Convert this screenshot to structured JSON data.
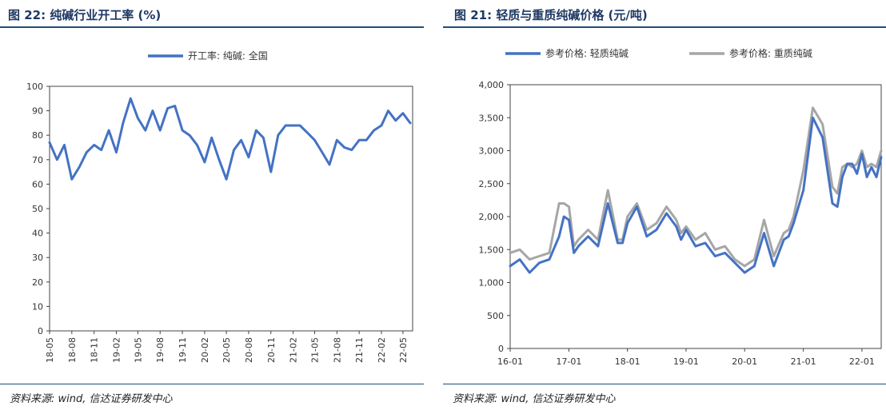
{
  "left_panel": {
    "title": "图 22: 纯碱行业开工率 (%)",
    "source": "资料来源: wind, 信达证券研发中心"
  },
  "right_panel": {
    "title": "图 21: 轻质与重质纯碱价格 (元/吨)",
    "source": "资料来源: wind, 信达证券研发中心"
  },
  "chart_data": [
    {
      "type": "line",
      "title": "",
      "xlabel": "",
      "ylabel": "",
      "ylim": [
        0,
        100
      ],
      "y_ticks": [
        "0",
        "10",
        "20",
        "30",
        "40",
        "50",
        "60",
        "70",
        "80",
        "90",
        "100"
      ],
      "x_ticks": [
        "18-05",
        "18-08",
        "18-11",
        "19-02",
        "19-05",
        "19-08",
        "19-11",
        "20-02",
        "20-05",
        "20-08",
        "20-11",
        "21-02",
        "21-05",
        "21-08",
        "21-11",
        "22-02",
        "22-05"
      ],
      "legend_position": "top-center",
      "grid": false,
      "series": [
        {
          "name": "开工率: 纯碱: 全国",
          "color": "#4472c4",
          "x": [
            "2018-05-01",
            "2018-06-01",
            "2018-07-01",
            "2018-08-01",
            "2018-09-01",
            "2018-10-01",
            "2018-11-01",
            "2018-12-01",
            "2019-01-01",
            "2019-02-01",
            "2019-03-01",
            "2019-04-01",
            "2019-05-01",
            "2019-06-01",
            "2019-07-01",
            "2019-08-01",
            "2019-09-01",
            "2019-10-01",
            "2019-11-01",
            "2019-12-01",
            "2020-01-01",
            "2020-02-01",
            "2020-03-01",
            "2020-04-01",
            "2020-05-01",
            "2020-06-01",
            "2020-07-01",
            "2020-08-01",
            "2020-09-01",
            "2020-10-01",
            "2020-11-01",
            "2020-12-01",
            "2021-01-01",
            "2021-02-01",
            "2021-03-01",
            "2021-04-01",
            "2021-05-01",
            "2021-06-01",
            "2021-07-01",
            "2021-08-01",
            "2021-09-01",
            "2021-10-01",
            "2021-11-01",
            "2021-12-01",
            "2022-01-01",
            "2022-02-01",
            "2022-03-01",
            "2022-04-01",
            "2022-05-01",
            "2022-05-31"
          ],
          "values": [
            77,
            70,
            76,
            62,
            67,
            73,
            76,
            74,
            82,
            73,
            85,
            95,
            87,
            82,
            90,
            82,
            91,
            92,
            82,
            80,
            76,
            69,
            79,
            70,
            62,
            74,
            78,
            71,
            82,
            79,
            65,
            80,
            84,
            84,
            84,
            81,
            78,
            73,
            68,
            78,
            75,
            74,
            78,
            78,
            82,
            84,
            90,
            86,
            89,
            85
          ]
        }
      ]
    },
    {
      "type": "line",
      "title": "",
      "xlabel": "",
      "ylabel": "",
      "ylim": [
        0,
        4000
      ],
      "y_ticks": [
        "0",
        "500",
        "1,000",
        "1,500",
        "2,000",
        "2,500",
        "3,000",
        "3,500",
        "4,000"
      ],
      "x_ticks": [
        "16-01",
        "17-01",
        "18-01",
        "19-01",
        "20-01",
        "21-01",
        "22-01"
      ],
      "legend_position": "top-center",
      "grid": false,
      "series": [
        {
          "name": "参考价格: 轻质纯碱",
          "color": "#4472c4",
          "x": [
            "2016-01-01",
            "2016-03-01",
            "2016-05-01",
            "2016-07-01",
            "2016-09-01",
            "2016-11-01",
            "2016-12-01",
            "2017-01-01",
            "2017-02-01",
            "2017-03-01",
            "2017-05-01",
            "2017-07-01",
            "2017-09-01",
            "2017-11-01",
            "2017-12-01",
            "2018-01-01",
            "2018-03-01",
            "2018-05-01",
            "2018-07-01",
            "2018-09-01",
            "2018-11-01",
            "2018-12-01",
            "2019-01-01",
            "2019-03-01",
            "2019-05-01",
            "2019-07-01",
            "2019-09-01",
            "2019-11-01",
            "2020-01-01",
            "2020-03-01",
            "2020-05-01",
            "2020-07-01",
            "2020-09-01",
            "2020-10-01",
            "2020-11-01",
            "2021-01-01",
            "2021-03-01",
            "2021-05-01",
            "2021-07-01",
            "2021-08-01",
            "2021-09-01",
            "2021-10-01",
            "2021-11-01",
            "2021-12-01",
            "2022-01-01",
            "2022-02-01",
            "2022-03-01",
            "2022-04-01",
            "2022-05-01"
          ],
          "values": [
            1250,
            1350,
            1150,
            1300,
            1350,
            1700,
            2000,
            1950,
            1450,
            1550,
            1700,
            1550,
            2200,
            1600,
            1600,
            1900,
            2150,
            1700,
            1800,
            2050,
            1850,
            1650,
            1800,
            1550,
            1600,
            1400,
            1450,
            1300,
            1150,
            1250,
            1750,
            1250,
            1650,
            1700,
            1900,
            2400,
            3500,
            3200,
            2200,
            2150,
            2600,
            2800,
            2800,
            2650,
            2950,
            2600,
            2750,
            2600,
            2900
          ]
        },
        {
          "name": "参考价格: 重质纯碱",
          "color": "#a6a6a6",
          "x": [
            "2016-01-01",
            "2016-03-01",
            "2016-05-01",
            "2016-07-01",
            "2016-09-01",
            "2016-11-01",
            "2016-12-01",
            "2017-01-01",
            "2017-02-01",
            "2017-03-01",
            "2017-05-01",
            "2017-07-01",
            "2017-09-01",
            "2017-11-01",
            "2017-12-01",
            "2018-01-01",
            "2018-03-01",
            "2018-05-01",
            "2018-07-01",
            "2018-09-01",
            "2018-11-01",
            "2018-12-01",
            "2019-01-01",
            "2019-03-01",
            "2019-05-01",
            "2019-07-01",
            "2019-09-01",
            "2019-11-01",
            "2020-01-01",
            "2020-03-01",
            "2020-05-01",
            "2020-07-01",
            "2020-09-01",
            "2020-10-01",
            "2020-11-01",
            "2021-01-01",
            "2021-03-01",
            "2021-05-01",
            "2021-07-01",
            "2021-08-01",
            "2021-09-01",
            "2021-10-01",
            "2021-11-01",
            "2021-12-01",
            "2022-01-01",
            "2022-02-01",
            "2022-03-01",
            "2022-04-01",
            "2022-05-01"
          ],
          "values": [
            1450,
            1500,
            1350,
            1400,
            1450,
            2200,
            2200,
            2150,
            1550,
            1650,
            1800,
            1650,
            2400,
            1650,
            1650,
            2000,
            2200,
            1800,
            1900,
            2150,
            1950,
            1750,
            1850,
            1650,
            1750,
            1500,
            1550,
            1350,
            1250,
            1350,
            1950,
            1400,
            1750,
            1800,
            2000,
            2700,
            3650,
            3400,
            2450,
            2350,
            2750,
            2800,
            2750,
            2800,
            3000,
            2750,
            2800,
            2750,
            3000
          ]
        }
      ]
    }
  ]
}
